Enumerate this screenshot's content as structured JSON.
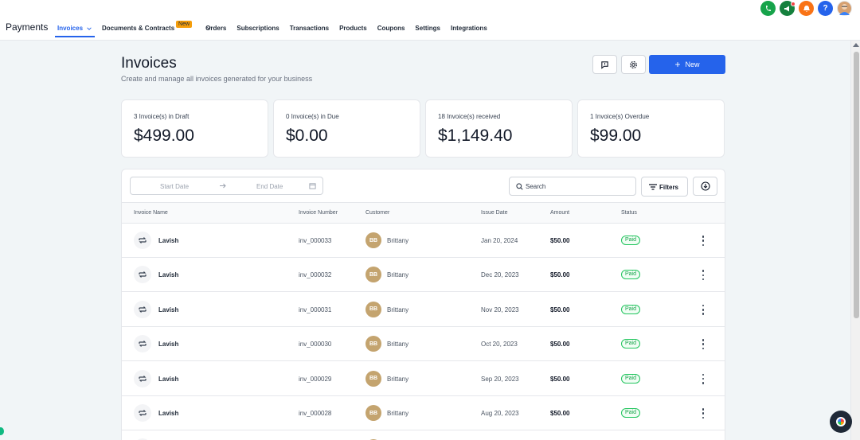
{
  "app": {
    "title": "Payments"
  },
  "nav": {
    "items": [
      {
        "label": "Invoices",
        "active": true,
        "has_chevron": true
      },
      {
        "label": "Documents & Contracts",
        "badge": "New",
        "has_chevron": true
      },
      {
        "label": "Orders"
      },
      {
        "label": "Subscriptions"
      },
      {
        "label": "Transactions"
      },
      {
        "label": "Products"
      },
      {
        "label": "Coupons"
      },
      {
        "label": "Settings"
      },
      {
        "label": "Integrations"
      }
    ]
  },
  "top_icons": [
    "phone-icon",
    "megaphone-icon",
    "bell-icon",
    "help-icon",
    "user-avatar"
  ],
  "header": {
    "title": "Invoices",
    "subtitle": "Create and manage all invoices generated for your business",
    "new_button": "New"
  },
  "stats": [
    {
      "label": "3 Invoice(s) in Draft",
      "value": "$499.00"
    },
    {
      "label": "0 Invoice(s) in Due",
      "value": "$0.00"
    },
    {
      "label": "18 Invoice(s) received",
      "value": "$1,149.40"
    },
    {
      "label": "1 Invoice(s) Overdue",
      "value": "$99.00"
    }
  ],
  "toolbar": {
    "start_placeholder": "Start Date",
    "end_placeholder": "End Date",
    "search_placeholder": "Search",
    "filters_label": "Filters"
  },
  "table": {
    "columns": [
      "Invoice Name",
      "Invoice Number",
      "Customer",
      "Issue Date",
      "Amount",
      "Status"
    ],
    "rows": [
      {
        "name": "Lavish",
        "number": "inv_000033",
        "initials": "BB",
        "customer": "Brittany",
        "date": "Jan 20, 2024",
        "amount": "$50.00",
        "status": "Paid"
      },
      {
        "name": "Lavish",
        "number": "inv_000032",
        "initials": "BB",
        "customer": "Brittany",
        "date": "Dec 20, 2023",
        "amount": "$50.00",
        "status": "Paid"
      },
      {
        "name": "Lavish",
        "number": "inv_000031",
        "initials": "BB",
        "customer": "Brittany",
        "date": "Nov 20, 2023",
        "amount": "$50.00",
        "status": "Paid"
      },
      {
        "name": "Lavish",
        "number": "inv_000030",
        "initials": "BB",
        "customer": "Brittany",
        "date": "Oct 20, 2023",
        "amount": "$50.00",
        "status": "Paid"
      },
      {
        "name": "Lavish",
        "number": "inv_000029",
        "initials": "BB",
        "customer": "Brittany",
        "date": "Sep 20, 2023",
        "amount": "$50.00",
        "status": "Paid"
      },
      {
        "name": "Lavish",
        "number": "inv_000028",
        "initials": "BB",
        "customer": "Brittany",
        "date": "Aug 20, 2023",
        "amount": "$50.00",
        "status": "Paid"
      }
    ]
  },
  "colors": {
    "accent": "#2563eb",
    "paid": "#16a34a",
    "badge": "#f59e0b"
  }
}
